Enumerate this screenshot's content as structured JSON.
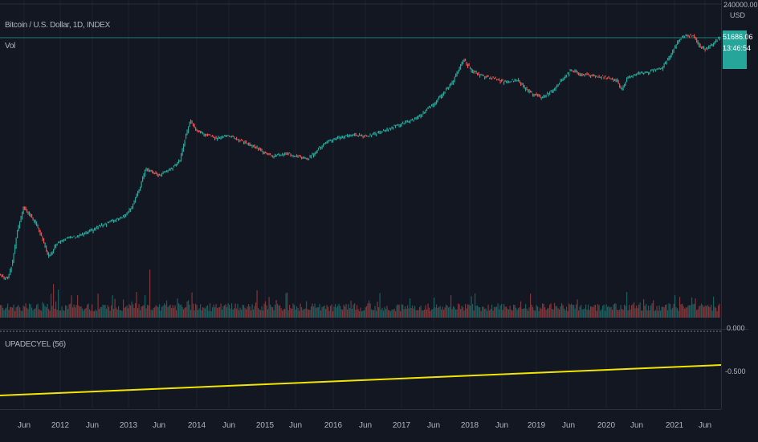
{
  "symbol_legend": "Bitcoin / U.S. Dollar, 1D, INDEX",
  "volume_legend": "Vol",
  "indicator_legend": "UPADECYEL (56)",
  "price_scale": {
    "top_value": "240000.00",
    "currency": "USD",
    "last_price": "51686.06",
    "countdown": "13:46:54"
  },
  "indicator_scale": {
    "zero": "0.000",
    "minus_half": "-0.500"
  },
  "time_axis": {
    "labels": [
      "Jun",
      "2012",
      "Jun",
      "2013",
      "Jun",
      "2014",
      "Jun",
      "2015",
      "Jun",
      "2016",
      "Jun",
      "2017",
      "Jun",
      "2018",
      "Jun",
      "2019",
      "Jun",
      "2020",
      "Jun",
      "2021",
      "Jun"
    ]
  },
  "colors": {
    "background": "#131722",
    "up": "#26a69a",
    "down": "#ef5350",
    "indicator_line": "#f2e600",
    "grid": "#1e222d"
  }
}
